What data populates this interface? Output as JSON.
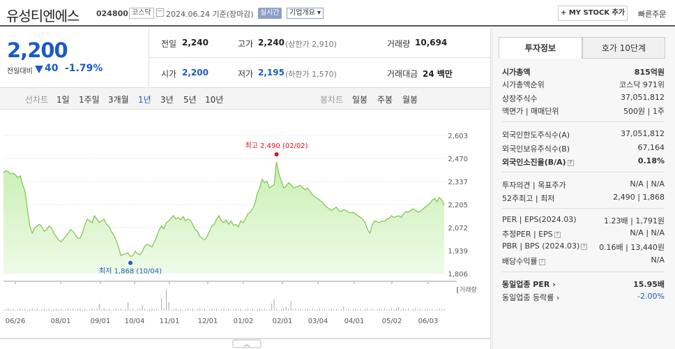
{
  "header": {
    "title": "유성티엔에스",
    "code": "024800",
    "market": "코스닥",
    "date": "2024.06.24",
    "date_note": "기준(장마감)",
    "live_badge": "실시간",
    "company_badge": "기업개요",
    "mystock_button": "+ MY STOCK 추가",
    "quick_order": "빠른주문"
  },
  "quote": {
    "price": "2,200",
    "change_label": "전일대비",
    "change": "40",
    "change_pct": "-1.79%",
    "prev_label": "전일",
    "prev": "2,240",
    "high_label": "고가",
    "high": "2,240",
    "upper_limit": "(상한가 2,910)",
    "volume_label": "거래량",
    "volume": "10,694",
    "open_label": "시가",
    "open": "2,200",
    "low_label": "저가",
    "low": "2,195",
    "lower_limit": "(하한가 1,570)",
    "amount_label": "거래대금",
    "amount": "24 백만"
  },
  "tabs": {
    "line_chart": "선차트",
    "ranges": [
      "1일",
      "1주일",
      "3개월",
      "1년",
      "3년",
      "5년",
      "10년"
    ],
    "active_range": "1년",
    "candle_chart": "봉차트",
    "candles": [
      "일봉",
      "주봉",
      "월봉"
    ]
  },
  "chart_data": {
    "type": "area",
    "y_ticks": [
      "2,603",
      "2,470",
      "2,337",
      "2,205",
      "2,072",
      "1,939",
      "1,806"
    ],
    "x_ticks": [
      "06/26",
      "08/01",
      "09/01",
      "10/04",
      "11/01",
      "12/01",
      "01/02",
      "02/01",
      "03/04",
      "04/01",
      "05/02",
      "06/03"
    ],
    "ylim": [
      1806,
      2603
    ],
    "max_annotation": "최고 2,490 (02/02)",
    "min_annotation": "최저 1,868 (10/04)",
    "volume_label": "거래량",
    "series": [
      {
        "values": [
          2390,
          2400,
          2395,
          2380,
          2385,
          2375,
          2360,
          2370,
          2320,
          2280,
          2180,
          2080,
          2040,
          2070,
          2080,
          2090,
          2075,
          2050,
          2060,
          2080,
          2070,
          2040,
          2020,
          2000,
          1990,
          2005,
          2020,
          2040,
          2060,
          2050,
          2030,
          2010,
          2010,
          2040,
          2090,
          2120,
          2110,
          2100,
          2140,
          2120,
          2100,
          2110,
          2120,
          2090,
          2080,
          2050,
          2030,
          2000,
          1960,
          1910,
          1918,
          1920,
          1925,
          1905,
          1910,
          1935,
          1920,
          1915,
          1935,
          1965,
          1975,
          1968,
          1960,
          1990,
          2020,
          2060,
          2080,
          2065,
          2100,
          2110,
          2125,
          2140,
          2120,
          2130,
          2115,
          2135,
          2110,
          2120,
          2115,
          2090,
          2060,
          2050,
          2020,
          2010,
          2000,
          2020,
          2050,
          2080,
          2090,
          2120,
          2140,
          2110,
          2100,
          2115,
          2090,
          2110,
          2085,
          2090,
          2075,
          2110,
          2100,
          2120,
          2150,
          2160,
          2180,
          2210,
          2270,
          2300,
          2350,
          2330,
          2340,
          2300,
          2310,
          2320,
          2450,
          2380,
          2340,
          2300,
          2310,
          2330,
          2320,
          2300,
          2305,
          2310,
          2315,
          2300,
          2290,
          2300,
          2280,
          2260,
          2250,
          2240,
          2230,
          2220,
          2200,
          2190,
          2180,
          2170,
          2180,
          2190,
          2170,
          2165,
          2175,
          2170,
          2160,
          2155,
          2160,
          2150,
          2140,
          2130,
          2120,
          2100,
          2060,
          2040,
          2090,
          2110,
          2105,
          2100,
          2110,
          2105,
          2120,
          2125,
          2140,
          2130,
          2135,
          2140,
          2130,
          2150,
          2165,
          2160,
          2170,
          2180,
          2170,
          2160,
          2165,
          2175,
          2190,
          2200,
          2210,
          2230,
          2240,
          2220,
          2245,
          2230,
          2200
        ]
      }
    ]
  },
  "side": {
    "tabs": [
      "투자정보",
      "호가 10단계"
    ],
    "market_cap_label": "시가총액",
    "market_cap": "815억원",
    "rank_label": "시가총액순위",
    "rank": "코스닥 971위",
    "shares_label": "상장주식수",
    "shares": "37,051,812",
    "par_label": "액면가",
    "par_sep": "매매단위",
    "par": "500원",
    "unit": "1주",
    "foreign_limit_label": "외국인한도주식수(A)",
    "foreign_limit": "37,051,812",
    "foreign_hold_label": "외국인보유주식수(B)",
    "foreign_hold": "67,164",
    "foreign_rate_label": "외국인소진율(B/A)",
    "foreign_rate": "0.18%",
    "opinion_label": "투자의견",
    "target_label": "목표주가",
    "opinion": "N/A",
    "target": "N/A",
    "week52_label": "52주최고",
    "week52_sep": "최저",
    "week52_high": "2,490",
    "week52_low": "1,868",
    "per_label": "PER",
    "eps_label": "EPS(2024.03)",
    "per": "1.23배",
    "eps": "1,791원",
    "est_per_label": "추정PER",
    "est_eps_label": "EPS",
    "est_per": "N/A",
    "est_eps": "N/A",
    "pbr_label": "PBR",
    "bps_label": "BPS (2024.03)",
    "pbr": "0.16배",
    "bps": "13,440원",
    "div_label": "배당수익률",
    "div": "N/A",
    "sector_per_label": "동일업종 PER",
    "sector_per": "15.95배",
    "sector_rate_label": "동일업종 등락률",
    "sector_rate": "-2.00%"
  },
  "colors": {
    "blue": "#1a5bc4",
    "red": "#e0101e",
    "area": "#d9f5c8",
    "line": "#7cc24a"
  }
}
